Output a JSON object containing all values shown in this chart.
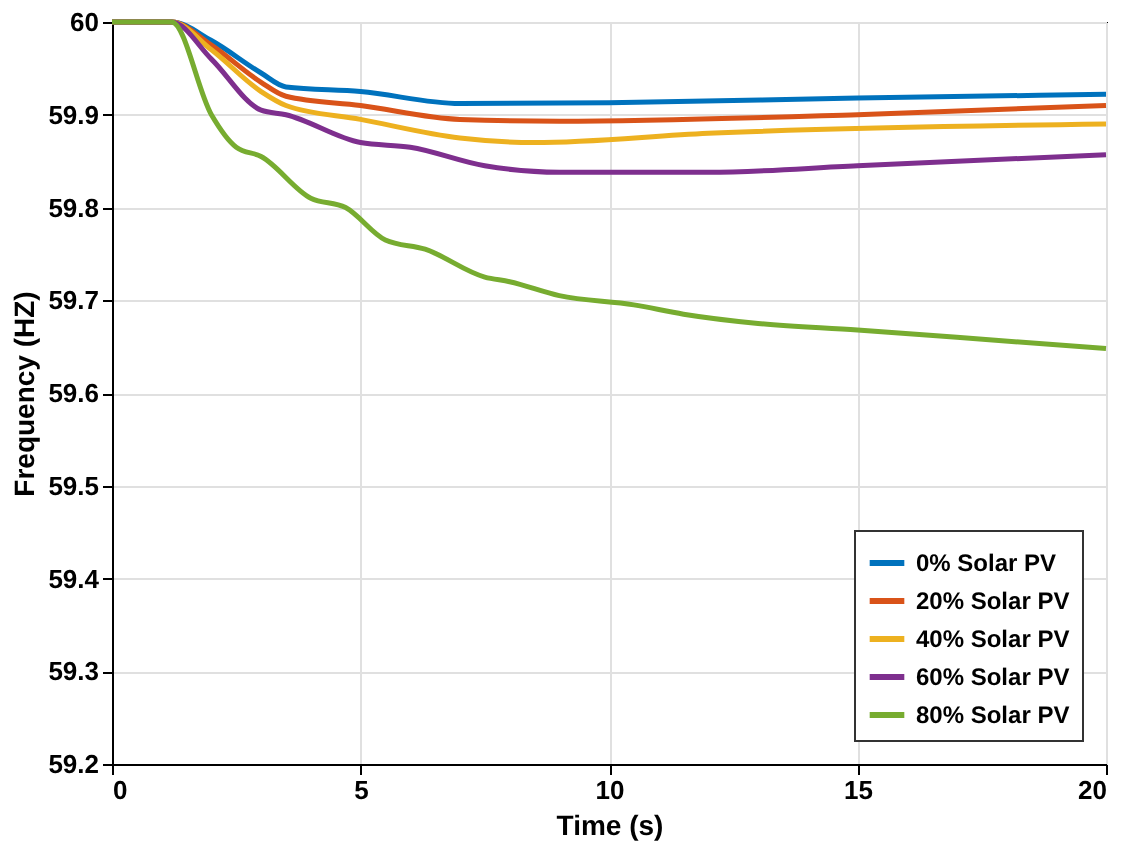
{
  "chart_data": {
    "type": "line",
    "xlabel": "Time (s)",
    "ylabel": "Frequency (HZ)",
    "xlim": [
      0,
      20
    ],
    "xticks": [
      0,
      5,
      10,
      15,
      20
    ],
    "ylim": [
      59.2,
      60
    ],
    "yticks": [
      59.2,
      59.3,
      59.4,
      59.5,
      59.6,
      59.7,
      59.8,
      59.9,
      60
    ],
    "grid": true,
    "legend": "bottom right",
    "line_style": "solid",
    "marker": "none",
    "series": [
      {
        "name": "0%   Solar PV",
        "color": "#0072bd",
        "x": [
          0,
          1.2,
          2,
          3,
          3.5,
          5,
          7,
          10,
          15,
          20
        ],
        "values": [
          60,
          60,
          59.98,
          59.945,
          59.93,
          59.925,
          59.912,
          59.913,
          59.918,
          59.922
        ]
      },
      {
        "name": "20% Solar PV",
        "color": "#d95319",
        "x": [
          0,
          1.2,
          2,
          3,
          3.5,
          5,
          7,
          9,
          15,
          20
        ],
        "values": [
          60,
          60,
          59.975,
          59.935,
          59.92,
          59.91,
          59.895,
          59.893,
          59.9,
          59.91
        ]
      },
      {
        "name": "40% Solar PV",
        "color": "#edb120",
        "x": [
          0,
          1.2,
          2,
          3,
          3.5,
          5,
          7,
          8.5,
          12,
          20
        ],
        "values": [
          60,
          60,
          59.97,
          59.925,
          59.91,
          59.895,
          59.875,
          59.87,
          59.88,
          59.89
        ]
      },
      {
        "name": "60% Solar PV",
        "color": "#7e2f8e",
        "x": [
          0,
          1.2,
          2,
          3,
          3.5,
          5,
          6,
          7.5,
          9,
          12,
          15,
          20
        ],
        "values": [
          60,
          60,
          59.96,
          59.905,
          59.9,
          59.87,
          59.865,
          59.845,
          59.838,
          59.838,
          59.845,
          59.857
        ]
      },
      {
        "name": "80% Solar PV",
        "color": "#77ac30",
        "x": [
          0,
          1.2,
          2,
          2.5,
          3,
          4,
          4.7,
          5.5,
          6.3,
          7.5,
          8,
          9,
          10.5,
          11.5,
          13,
          15,
          17,
          20
        ],
        "values": [
          60,
          60,
          59.9,
          59.865,
          59.855,
          59.81,
          59.8,
          59.765,
          59.755,
          59.725,
          59.72,
          59.705,
          59.695,
          59.685,
          59.675,
          59.668,
          59.66,
          59.648
        ]
      }
    ]
  }
}
